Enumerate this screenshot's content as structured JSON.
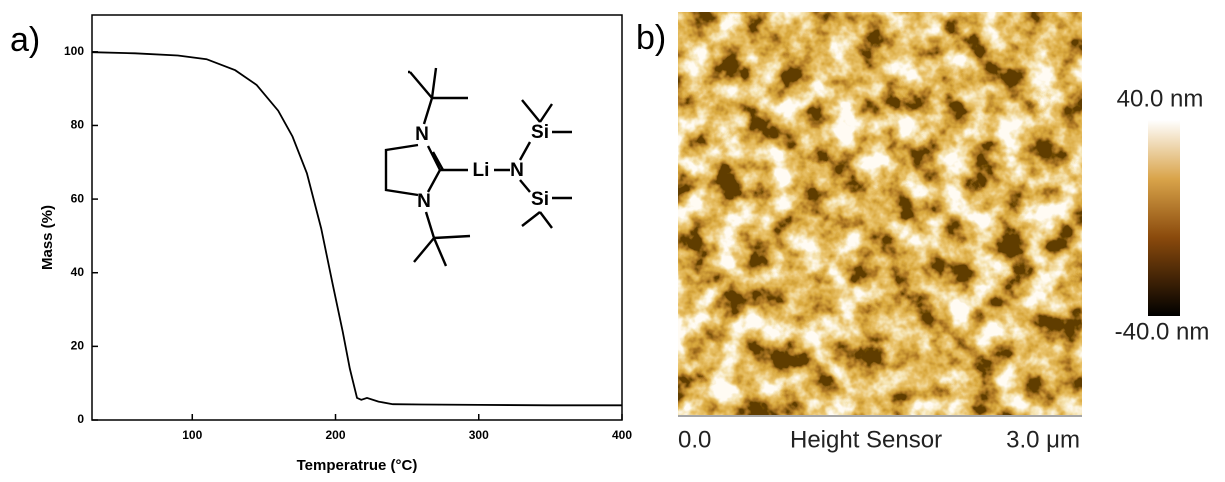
{
  "panels": {
    "a": "a)",
    "b": "b)"
  },
  "chart_data": {
    "type": "line",
    "xlabel": "Temperatrue (°C)",
    "ylabel": "Mass (%)",
    "x": [
      30,
      60,
      90,
      110,
      130,
      145,
      160,
      170,
      180,
      190,
      198,
      205,
      210,
      215,
      218,
      222,
      230,
      240,
      260,
      300,
      350,
      400
    ],
    "values": [
      99.9,
      99.6,
      99.0,
      98.0,
      95.0,
      91.0,
      84.0,
      77.0,
      67.0,
      52.0,
      37.0,
      24.0,
      14.0,
      6.0,
      5.5,
      6.0,
      5.0,
      4.3,
      4.2,
      4.1,
      4.0,
      4.0
    ],
    "color": "#000000",
    "xlim": [
      30,
      400
    ],
    "ylim": [
      0,
      110
    ],
    "xticks": [
      100,
      200,
      300,
      400
    ],
    "yticks": [
      0,
      20,
      40,
      60,
      80,
      100
    ]
  },
  "structure": {
    "atoms": [
      "N",
      "N",
      "Li",
      "N",
      "Si",
      "Si"
    ]
  },
  "afm": {
    "scale_max": "40.0 nm",
    "scale_min": "-40.0 nm",
    "x_start": "0.0",
    "channel": "Height Sensor",
    "x_end": "3.0 μm"
  }
}
